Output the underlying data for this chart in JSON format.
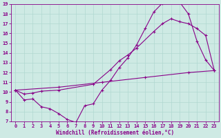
{
  "xlabel": "Windchill (Refroidissement éolien,°C)",
  "xlim": [
    -0.5,
    23.5
  ],
  "ylim": [
    7,
    19
  ],
  "xticks": [
    0,
    1,
    2,
    3,
    4,
    5,
    6,
    7,
    8,
    9,
    10,
    11,
    12,
    13,
    14,
    15,
    16,
    17,
    18,
    19,
    20,
    21,
    22,
    23
  ],
  "yticks": [
    7,
    8,
    9,
    10,
    11,
    12,
    13,
    14,
    15,
    16,
    17,
    18,
    19
  ],
  "bg_color": "#ceeae4",
  "line_color": "#880088",
  "grid_color": "#b0d8d0",
  "line1_x": [
    0,
    1,
    2,
    3,
    4,
    5,
    6,
    7,
    8,
    9,
    10,
    11,
    12,
    13,
    14,
    15,
    16,
    17,
    18,
    19,
    20,
    21,
    22,
    23
  ],
  "line1_y": [
    10.2,
    9.2,
    9.3,
    8.5,
    8.3,
    7.8,
    7.2,
    6.9,
    8.6,
    8.8,
    10.2,
    11.2,
    12.5,
    13.5,
    14.8,
    16.5,
    18.2,
    19.1,
    19.2,
    19.2,
    18.0,
    15.2,
    13.3,
    12.2
  ],
  "line2_x": [
    0,
    1,
    2,
    3,
    5,
    9,
    11,
    12,
    13,
    14,
    16,
    17,
    18,
    19,
    20,
    21,
    22,
    23
  ],
  "line2_y": [
    10.2,
    9.8,
    9.9,
    10.1,
    10.2,
    10.8,
    12.3,
    13.2,
    13.8,
    14.5,
    16.2,
    17.0,
    17.5,
    17.2,
    17.0,
    16.5,
    15.8,
    12.2
  ],
  "line3_x": [
    0,
    5,
    10,
    15,
    20,
    23
  ],
  "line3_y": [
    10.2,
    10.5,
    11.0,
    11.5,
    12.0,
    12.2
  ]
}
